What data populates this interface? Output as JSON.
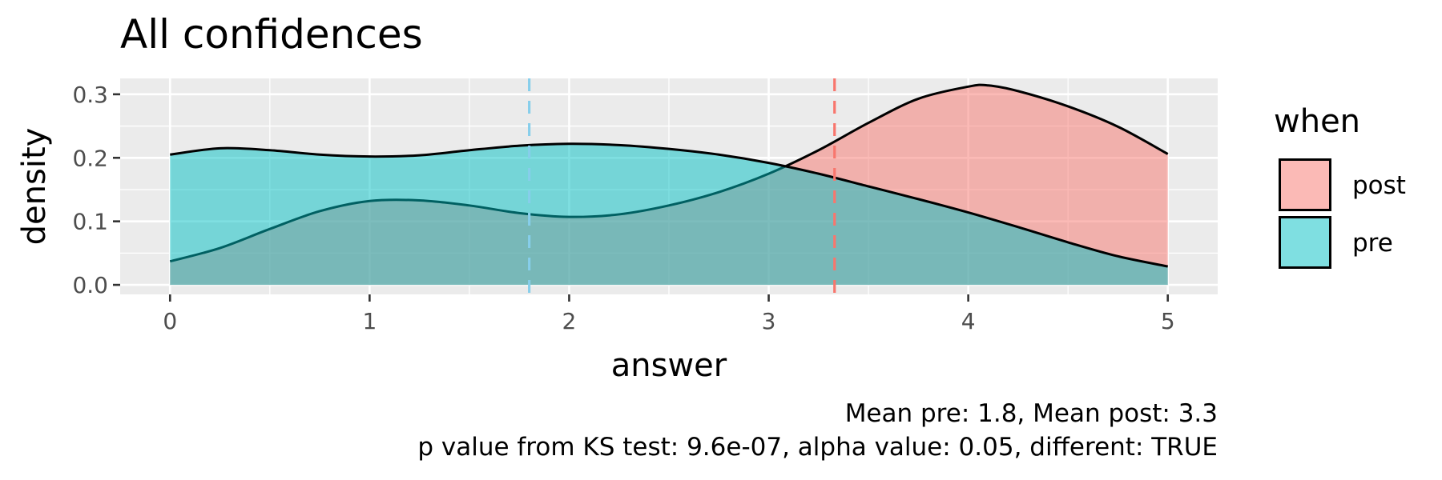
{
  "chart_data": {
    "type": "area",
    "title": "All confidences",
    "xlabel": "answer",
    "ylabel": "density",
    "xlim": [
      -0.25,
      5.25
    ],
    "ylim": [
      -0.015,
      0.325
    ],
    "x_ticks": [
      0,
      1,
      2,
      3,
      4,
      5
    ],
    "y_ticks": [
      0.0,
      0.1,
      0.2,
      0.3
    ],
    "y_tick_labels": [
      "0.0",
      "0.1",
      "0.2",
      "0.3"
    ],
    "grid": true,
    "legend": {
      "title": "when",
      "position": "right",
      "entries": [
        "post",
        "pre"
      ]
    },
    "series": [
      {
        "name": "post",
        "color": "#F8766D",
        "x": [
          0,
          0.25,
          0.5,
          0.75,
          1.0,
          1.25,
          1.5,
          1.75,
          2.0,
          2.25,
          2.5,
          2.75,
          3.0,
          3.25,
          3.5,
          3.75,
          4.0,
          4.1,
          4.25,
          4.5,
          4.75,
          5.0
        ],
        "values": [
          0.037,
          0.058,
          0.088,
          0.116,
          0.132,
          0.133,
          0.125,
          0.113,
          0.107,
          0.111,
          0.125,
          0.146,
          0.175,
          0.212,
          0.255,
          0.293,
          0.312,
          0.314,
          0.305,
          0.281,
          0.249,
          0.206
        ]
      },
      {
        "name": "pre",
        "color": "#00BFC4",
        "x": [
          0,
          0.25,
          0.5,
          0.75,
          1.0,
          1.25,
          1.5,
          1.75,
          2.0,
          2.25,
          2.5,
          2.75,
          3.0,
          3.25,
          3.5,
          3.75,
          4.0,
          4.25,
          4.5,
          4.75,
          5.0
        ],
        "values": [
          0.205,
          0.215,
          0.212,
          0.205,
          0.202,
          0.204,
          0.212,
          0.219,
          0.222,
          0.22,
          0.214,
          0.205,
          0.192,
          0.175,
          0.155,
          0.135,
          0.114,
          0.091,
          0.067,
          0.045,
          0.029
        ]
      }
    ],
    "mean_lines": [
      {
        "name": "pre",
        "x": 1.8,
        "color": "#87CEEB"
      },
      {
        "name": "post",
        "x": 3.33,
        "color": "#F8766D"
      }
    ],
    "caption_lines": [
      "Mean pre: 1.8, Mean post: 3.3",
      "p value from KS test: 9.6e-07, alpha value: 0.05, different: TRUE"
    ]
  }
}
